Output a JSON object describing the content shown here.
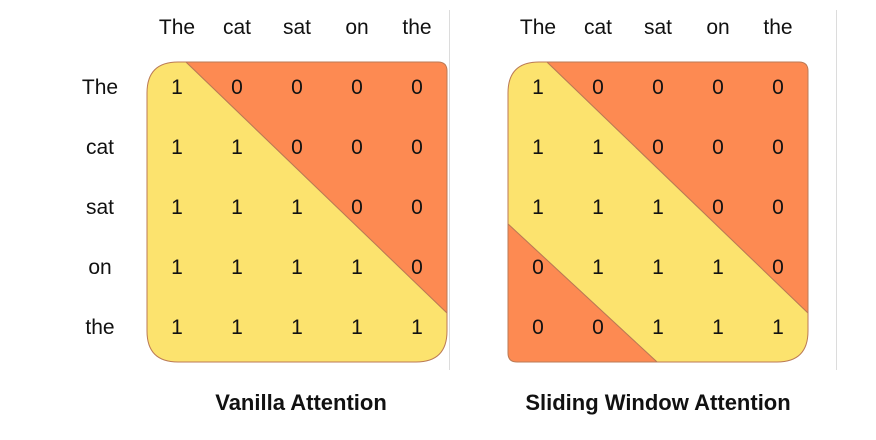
{
  "colors": {
    "lower": "#FCE36E",
    "upper": "#FD8A52",
    "border": "#bb7a55"
  },
  "tokens": [
    "The",
    "cat",
    "sat",
    "on",
    "the"
  ],
  "diagrams": [
    {
      "caption": "Vanilla Attention",
      "matrix": [
        [
          "1",
          "0",
          "0",
          "0",
          "0"
        ],
        [
          "1",
          "1",
          "0",
          "0",
          "0"
        ],
        [
          "1",
          "1",
          "1",
          "0",
          "0"
        ],
        [
          "1",
          "1",
          "1",
          "1",
          "0"
        ],
        [
          "1",
          "1",
          "1",
          "1",
          "1"
        ]
      ]
    },
    {
      "caption": "Sliding Window Attention",
      "matrix": [
        [
          "1",
          "0",
          "0",
          "0",
          "0"
        ],
        [
          "1",
          "1",
          "0",
          "0",
          "0"
        ],
        [
          "1",
          "1",
          "1",
          "0",
          "0"
        ],
        [
          "0",
          "1",
          "1",
          "1",
          "0"
        ],
        [
          "0",
          "0",
          "1",
          "1",
          "1"
        ]
      ]
    }
  ]
}
